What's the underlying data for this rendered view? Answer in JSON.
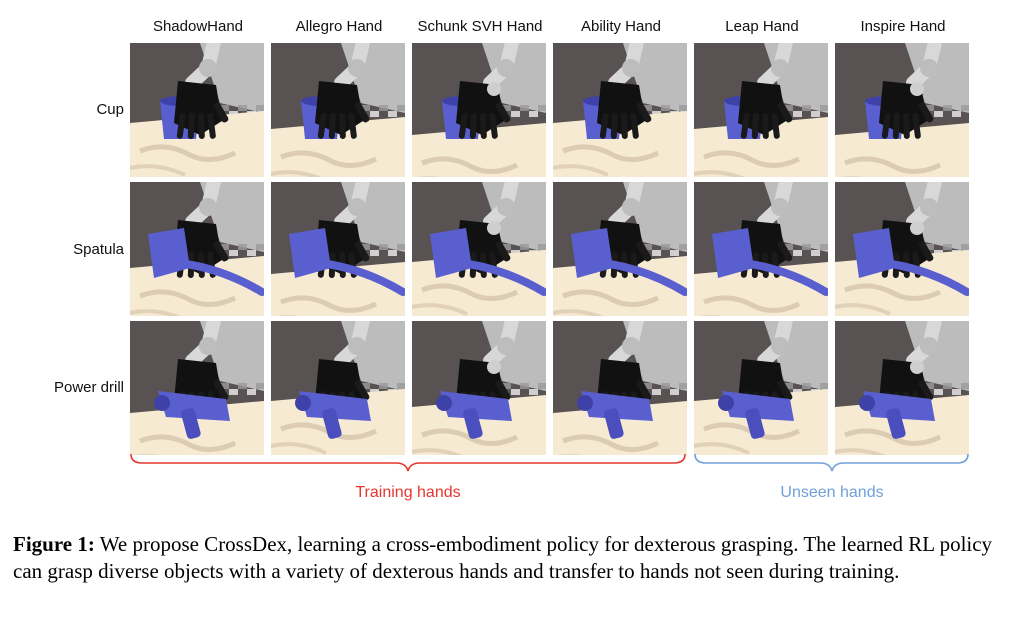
{
  "figure": {
    "columns": [
      "ShadowHand",
      "Allegro Hand",
      "Schunk SVH Hand",
      "Ability Hand",
      "Leap Hand",
      "Inspire Hand"
    ],
    "rows": [
      "Cup",
      "Spatula",
      "Power drill"
    ],
    "groups": [
      {
        "label": "Training hands",
        "color": "#e8352e"
      },
      {
        "label": "Unseen hands",
        "color": "#6fa0d8"
      }
    ],
    "colors": {
      "object": "#5a5fcf",
      "hand": "#111111",
      "arm": "#d8d8d8",
      "table": "#f6ead2",
      "wall": "#595252"
    }
  },
  "caption": {
    "label": "Figure 1:",
    "text": "We propose CrossDex, learning a cross-embodiment policy for dexterous grasping. The learned RL policy can grasp diverse objects with a variety of dexterous hands and transfer to hands not seen during training."
  }
}
